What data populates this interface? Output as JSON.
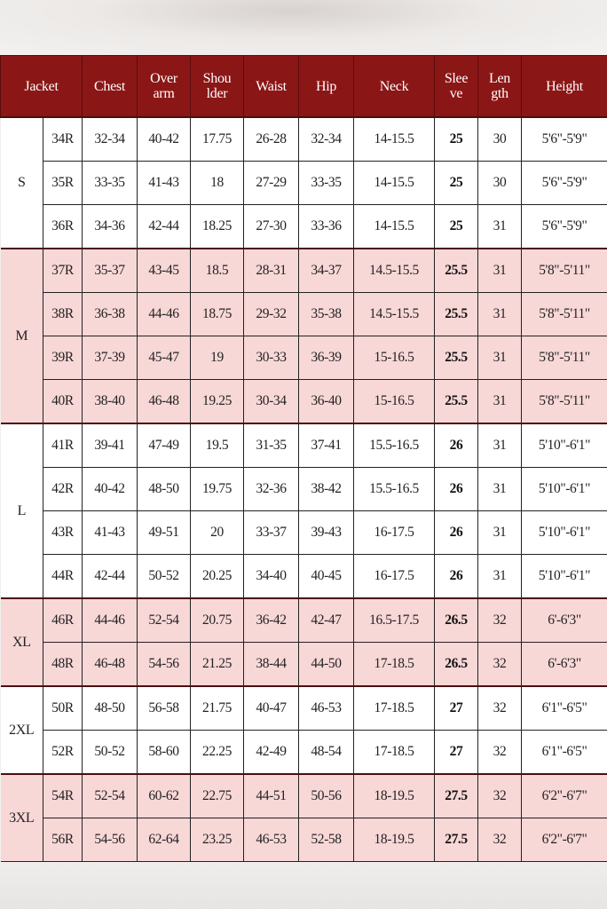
{
  "colors": {
    "header": "#8b1616",
    "pink_row": "#f8d7d7",
    "white_row": "#ffffff"
  },
  "headers": [
    "Jacket",
    "Chest",
    "Over arm",
    "Shou lder",
    "Waist",
    "Hip",
    "Neck",
    "Slee ve",
    "Len gth",
    "Height"
  ],
  "groups": [
    {
      "label": "S",
      "shade": "white",
      "rows": [
        [
          "34R",
          "32-34",
          "40-42",
          "17.75",
          "26-28",
          "32-34",
          "14-15.5",
          "25",
          "30",
          "5'6\"-5'9\""
        ],
        [
          "35R",
          "33-35",
          "41-43",
          "18",
          "27-29",
          "33-35",
          "14-15.5",
          "25",
          "30",
          "5'6\"-5'9\""
        ],
        [
          "36R",
          "34-36",
          "42-44",
          "18.25",
          "27-30",
          "33-36",
          "14-15.5",
          "25",
          "31",
          "5'6\"-5'9\""
        ]
      ]
    },
    {
      "label": "M",
      "shade": "pink",
      "rows": [
        [
          "37R",
          "35-37",
          "43-45",
          "18.5",
          "28-31",
          "34-37",
          "14.5-15.5",
          "25.5",
          "31",
          "5'8\"-5'11\""
        ],
        [
          "38R",
          "36-38",
          "44-46",
          "18.75",
          "29-32",
          "35-38",
          "14.5-15.5",
          "25.5",
          "31",
          "5'8\"-5'11\""
        ],
        [
          "39R",
          "37-39",
          "45-47",
          "19",
          "30-33",
          "36-39",
          "15-16.5",
          "25.5",
          "31",
          "5'8\"-5'11\""
        ],
        [
          "40R",
          "38-40",
          "46-48",
          "19.25",
          "30-34",
          "36-40",
          "15-16.5",
          "25.5",
          "31",
          "5'8\"-5'11\""
        ]
      ]
    },
    {
      "label": "L",
      "shade": "white",
      "rows": [
        [
          "41R",
          "39-41",
          "47-49",
          "19.5",
          "31-35",
          "37-41",
          "15.5-16.5",
          "26",
          "31",
          "5'10\"-6'1\""
        ],
        [
          "42R",
          "40-42",
          "48-50",
          "19.75",
          "32-36",
          "38-42",
          "15.5-16.5",
          "26",
          "31",
          "5'10\"-6'1\""
        ],
        [
          "43R",
          "41-43",
          "49-51",
          "20",
          "33-37",
          "39-43",
          "16-17.5",
          "26",
          "31",
          "5'10\"-6'1\""
        ],
        [
          "44R",
          "42-44",
          "50-52",
          "20.25",
          "34-40",
          "40-45",
          "16-17.5",
          "26",
          "31",
          "5'10\"-6'1\""
        ]
      ]
    },
    {
      "label": "XL",
      "shade": "pink",
      "rows": [
        [
          "46R",
          "44-46",
          "52-54",
          "20.75",
          "36-42",
          "42-47",
          "16.5-17.5",
          "26.5",
          "32",
          "6'-6'3\""
        ],
        [
          "48R",
          "46-48",
          "54-56",
          "21.25",
          "38-44",
          "44-50",
          "17-18.5",
          "26.5",
          "32",
          "6'-6'3\""
        ]
      ]
    },
    {
      "label": "2XL",
      "shade": "white",
      "rows": [
        [
          "50R",
          "48-50",
          "56-58",
          "21.75",
          "40-47",
          "46-53",
          "17-18.5",
          "27",
          "32",
          "6'1\"-6'5\""
        ],
        [
          "52R",
          "50-52",
          "58-60",
          "22.25",
          "42-49",
          "48-54",
          "17-18.5",
          "27",
          "32",
          "6'1\"-6'5\""
        ]
      ]
    },
    {
      "label": "3XL",
      "shade": "pink",
      "rows": [
        [
          "54R",
          "52-54",
          "60-62",
          "22.75",
          "44-51",
          "50-56",
          "18-19.5",
          "27.5",
          "32",
          "6'2\"-6'7\""
        ],
        [
          "56R",
          "54-56",
          "62-64",
          "23.25",
          "46-53",
          "52-58",
          "18-19.5",
          "27.5",
          "32",
          "6'2\"-6'7\""
        ]
      ]
    }
  ]
}
